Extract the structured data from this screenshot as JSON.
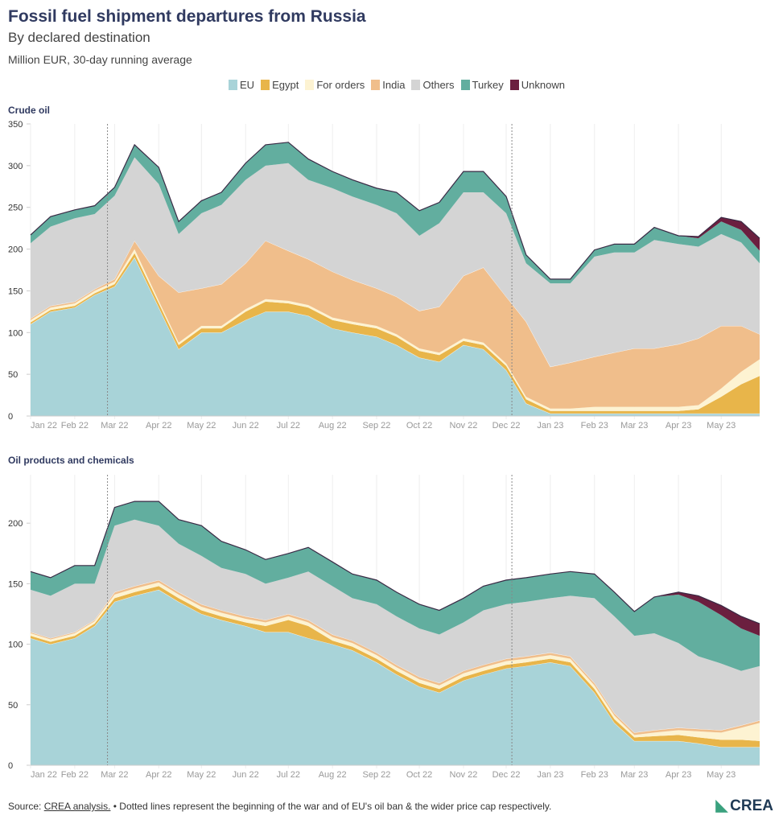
{
  "header": {
    "title": "Fossil fuel shipment departures from Russia",
    "subtitle": "By declared destination",
    "unit": "Million EUR, 30-day running average"
  },
  "legend": [
    {
      "name": "EU",
      "color": "#a8d3d8"
    },
    {
      "name": "Egypt",
      "color": "#e8b54a"
    },
    {
      "name": "For orders",
      "color": "#fdf3d2"
    },
    {
      "name": "India",
      "color": "#f0be8b"
    },
    {
      "name": "Others",
      "color": "#d4d4d4"
    },
    {
      "name": "Turkey",
      "color": "#62ae9f"
    },
    {
      "name": "Unknown",
      "color": "#6b1f3f"
    }
  ],
  "footer": {
    "source_prefix": "Source: ",
    "source_link": "CREA analysis.",
    "note": " • Dotted lines represent the beginning of the war and of EU's oil ban & the wider price cap respectively.",
    "logo": "CREA"
  },
  "chart_data": [
    {
      "type": "area",
      "stacked": true,
      "title": "Crude oil",
      "ylim": [
        0,
        350
      ],
      "yticks": [
        0,
        50,
        100,
        150,
        200,
        250,
        300,
        350
      ],
      "xtick_labels": [
        "Jan 22",
        "Feb 22",
        "Mar 22",
        "Apr 22",
        "May 22",
        "Jun 22",
        "Jul 22",
        "Aug 22",
        "Sep 22",
        "Oct 22",
        "Nov 22",
        "Dec 22",
        "Jan 23",
        "Feb 23",
        "Mar 23",
        "Apr 23",
        "May 23"
      ],
      "xtick_dates": [
        "2022-01-01",
        "2022-02-01",
        "2022-03-01",
        "2022-04-01",
        "2022-05-01",
        "2022-06-01",
        "2022-07-01",
        "2022-08-01",
        "2022-09-01",
        "2022-10-01",
        "2022-11-01",
        "2022-12-01",
        "2023-01-01",
        "2023-02-01",
        "2023-03-01",
        "2023-04-01",
        "2023-05-01"
      ],
      "markers": [
        "2022-02-24",
        "2022-12-05"
      ],
      "x": [
        "2022-01-01",
        "2022-01-15",
        "2022-02-01",
        "2022-02-15",
        "2022-03-01",
        "2022-03-15",
        "2022-04-01",
        "2022-04-15",
        "2022-05-01",
        "2022-05-15",
        "2022-06-01",
        "2022-06-15",
        "2022-07-01",
        "2022-07-15",
        "2022-08-01",
        "2022-08-15",
        "2022-09-01",
        "2022-09-15",
        "2022-10-01",
        "2022-10-15",
        "2022-11-01",
        "2022-11-15",
        "2022-12-01",
        "2022-12-15",
        "2023-01-01",
        "2023-01-15",
        "2023-02-01",
        "2023-02-15",
        "2023-03-01",
        "2023-03-15",
        "2023-04-01",
        "2023-04-15",
        "2023-05-01",
        "2023-05-15",
        "2023-05-28"
      ],
      "series": [
        {
          "name": "EU",
          "values": [
            110,
            125,
            130,
            145,
            155,
            190,
            130,
            80,
            100,
            100,
            115,
            125,
            125,
            120,
            105,
            100,
            95,
            85,
            70,
            65,
            85,
            80,
            55,
            15,
            3,
            3,
            3,
            3,
            3,
            3,
            3,
            3,
            3,
            3,
            3
          ]
        },
        {
          "name": "Egypt",
          "values": [
            2,
            2,
            2,
            2,
            3,
            5,
            5,
            5,
            5,
            5,
            10,
            12,
            10,
            10,
            10,
            10,
            10,
            10,
            8,
            8,
            5,
            5,
            5,
            5,
            3,
            3,
            3,
            3,
            3,
            3,
            3,
            5,
            20,
            35,
            45
          ]
        },
        {
          "name": "For orders",
          "values": [
            3,
            3,
            3,
            3,
            3,
            5,
            3,
            3,
            3,
            3,
            3,
            3,
            3,
            3,
            3,
            3,
            3,
            3,
            3,
            3,
            3,
            3,
            3,
            3,
            3,
            3,
            5,
            5,
            5,
            5,
            5,
            5,
            10,
            15,
            20
          ]
        },
        {
          "name": "India",
          "values": [
            2,
            2,
            2,
            2,
            3,
            10,
            30,
            60,
            45,
            50,
            55,
            70,
            60,
            55,
            55,
            50,
            45,
            45,
            45,
            55,
            75,
            90,
            80,
            90,
            50,
            55,
            60,
            65,
            70,
            70,
            75,
            80,
            75,
            55,
            30
          ]
        },
        {
          "name": "Others",
          "values": [
            90,
            95,
            100,
            90,
            100,
            100,
            110,
            70,
            90,
            95,
            100,
            90,
            105,
            95,
            100,
            100,
            100,
            100,
            90,
            100,
            100,
            90,
            100,
            70,
            100,
            95,
            120,
            120,
            115,
            130,
            120,
            110,
            110,
            100,
            85
          ]
        },
        {
          "name": "Turkey",
          "values": [
            10,
            12,
            10,
            10,
            10,
            15,
            20,
            15,
            15,
            15,
            20,
            25,
            25,
            25,
            20,
            20,
            20,
            25,
            30,
            25,
            25,
            25,
            20,
            10,
            5,
            5,
            8,
            10,
            10,
            15,
            10,
            10,
            15,
            15,
            15
          ]
        },
        {
          "name": "Unknown",
          "values": [
            0,
            0,
            0,
            0,
            0,
            0,
            0,
            0,
            0,
            0,
            0,
            0,
            0,
            0,
            0,
            0,
            0,
            0,
            0,
            0,
            0,
            0,
            0,
            0,
            0,
            0,
            0,
            0,
            0,
            0,
            0,
            2,
            5,
            10,
            15
          ]
        }
      ]
    },
    {
      "type": "area",
      "stacked": true,
      "title": "Oil products and chemicals",
      "ylim": [
        0,
        240
      ],
      "yticks": [
        0,
        50,
        100,
        150,
        200
      ],
      "xtick_labels": [
        "Jan 22",
        "Feb 22",
        "Mar 22",
        "Apr 22",
        "May 22",
        "Jun 22",
        "Jul 22",
        "Aug 22",
        "Sep 22",
        "Oct 22",
        "Nov 22",
        "Dec 22",
        "Jan 23",
        "Feb 23",
        "Mar 23",
        "Apr 23",
        "May 23"
      ],
      "xtick_dates": [
        "2022-01-01",
        "2022-02-01",
        "2022-03-01",
        "2022-04-01",
        "2022-05-01",
        "2022-06-01",
        "2022-07-01",
        "2022-08-01",
        "2022-09-01",
        "2022-10-01",
        "2022-11-01",
        "2022-12-01",
        "2023-01-01",
        "2023-02-01",
        "2023-03-01",
        "2023-04-01",
        "2023-05-01"
      ],
      "markers": [
        "2022-02-24",
        "2022-12-05"
      ],
      "x": [
        "2022-01-01",
        "2022-01-15",
        "2022-02-01",
        "2022-02-15",
        "2022-03-01",
        "2022-03-15",
        "2022-04-01",
        "2022-04-15",
        "2022-05-01",
        "2022-05-15",
        "2022-06-01",
        "2022-06-15",
        "2022-07-01",
        "2022-07-15",
        "2022-08-01",
        "2022-08-15",
        "2022-09-01",
        "2022-09-15",
        "2022-10-01",
        "2022-10-15",
        "2022-11-01",
        "2022-11-15",
        "2022-12-01",
        "2022-12-15",
        "2023-01-01",
        "2023-01-15",
        "2023-02-01",
        "2023-02-15",
        "2023-03-01",
        "2023-03-15",
        "2023-04-01",
        "2023-04-15",
        "2023-05-01",
        "2023-05-15",
        "2023-05-28"
      ],
      "series": [
        {
          "name": "EU",
          "values": [
            105,
            100,
            105,
            115,
            135,
            140,
            145,
            135,
            125,
            120,
            115,
            110,
            110,
            105,
            100,
            95,
            85,
            75,
            65,
            60,
            70,
            75,
            80,
            82,
            85,
            82,
            60,
            35,
            20,
            20,
            20,
            18,
            15,
            15,
            15
          ]
        },
        {
          "name": "Egypt",
          "values": [
            2,
            2,
            2,
            2,
            3,
            3,
            3,
            3,
            3,
            3,
            3,
            5,
            10,
            10,
            3,
            3,
            3,
            3,
            3,
            3,
            3,
            3,
            3,
            3,
            3,
            3,
            3,
            3,
            3,
            4,
            5,
            5,
            6,
            6,
            5
          ]
        },
        {
          "name": "For orders",
          "values": [
            2,
            2,
            2,
            2,
            3,
            3,
            3,
            3,
            3,
            3,
            3,
            3,
            3,
            3,
            3,
            3,
            3,
            3,
            3,
            3,
            3,
            3,
            3,
            3,
            3,
            3,
            3,
            3,
            2,
            3,
            4,
            5,
            6,
            10,
            15
          ]
        },
        {
          "name": "India",
          "values": [
            1,
            1,
            1,
            1,
            2,
            2,
            2,
            2,
            2,
            2,
            2,
            2,
            2,
            2,
            2,
            2,
            2,
            2,
            2,
            2,
            2,
            2,
            2,
            2,
            2,
            2,
            2,
            2,
            2,
            2,
            2,
            2,
            2,
            2,
            2
          ]
        },
        {
          "name": "Others",
          "values": [
            35,
            35,
            40,
            30,
            55,
            55,
            45,
            40,
            40,
            35,
            35,
            30,
            30,
            40,
            40,
            35,
            40,
            40,
            40,
            40,
            40,
            45,
            45,
            45,
            45,
            50,
            70,
            80,
            80,
            80,
            70,
            60,
            55,
            45,
            45
          ]
        },
        {
          "name": "Turkey",
          "values": [
            15,
            15,
            15,
            15,
            15,
            15,
            20,
            20,
            25,
            22,
            20,
            20,
            20,
            20,
            20,
            20,
            20,
            20,
            20,
            20,
            20,
            20,
            20,
            20,
            20,
            20,
            20,
            20,
            20,
            30,
            40,
            45,
            40,
            35,
            25
          ]
        },
        {
          "name": "Unknown",
          "values": [
            0,
            0,
            0,
            0,
            0,
            0,
            0,
            0,
            0,
            0,
            0,
            0,
            0,
            0,
            0,
            0,
            0,
            0,
            0,
            0,
            0,
            0,
            0,
            0,
            0,
            0,
            0,
            0,
            0,
            0,
            2,
            5,
            8,
            10,
            10
          ]
        }
      ]
    }
  ]
}
